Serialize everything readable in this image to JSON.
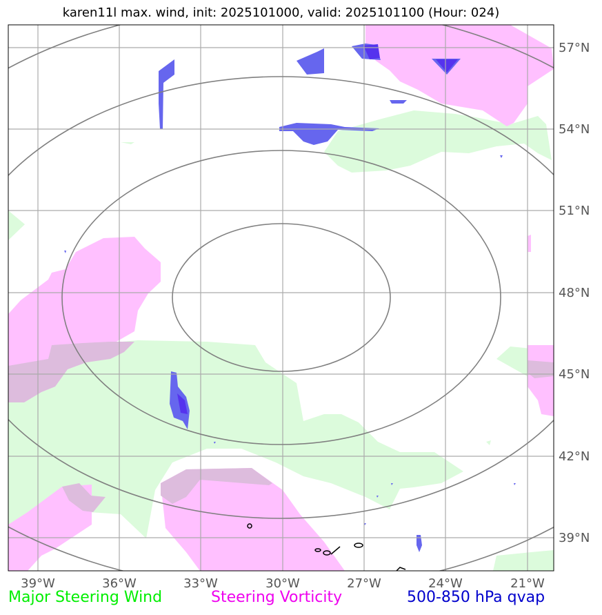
{
  "title": "karen11l max. wind, init: 2025101000, valid: 2025101100 (Hour: 024)",
  "map": {
    "lon_ticks": [
      "39°W",
      "36°W",
      "33°W",
      "30°W",
      "27°W",
      "24°W",
      "21°W"
    ],
    "lat_ticks": [
      "57°N",
      "54°N",
      "51°N",
      "48°N",
      "45°N",
      "42°N",
      "39°N"
    ],
    "center": {
      "lon": -30,
      "lat": 48
    },
    "lon_range": [
      -40,
      -20
    ],
    "lat_range": [
      38,
      58
    ]
  },
  "legend": {
    "wind": {
      "label": "Major Steering Wind",
      "color": "#00ee00"
    },
    "vorticity": {
      "label": "Steering Vorticity",
      "color": "#ee00ee"
    },
    "qvap": {
      "label": "500-850 hPa qvap",
      "color": "#0000cc"
    }
  },
  "colors": {
    "wind_fill": "#dcfbdc",
    "vort_fill": "#ffc0ff",
    "overlap_fill": "#ddbcdd",
    "qvap_fill": "#6666ee",
    "qvap_dark": "#5533ee",
    "grid": "#aaaaaa",
    "rings": "#808080",
    "tick_text": "#555555"
  }
}
